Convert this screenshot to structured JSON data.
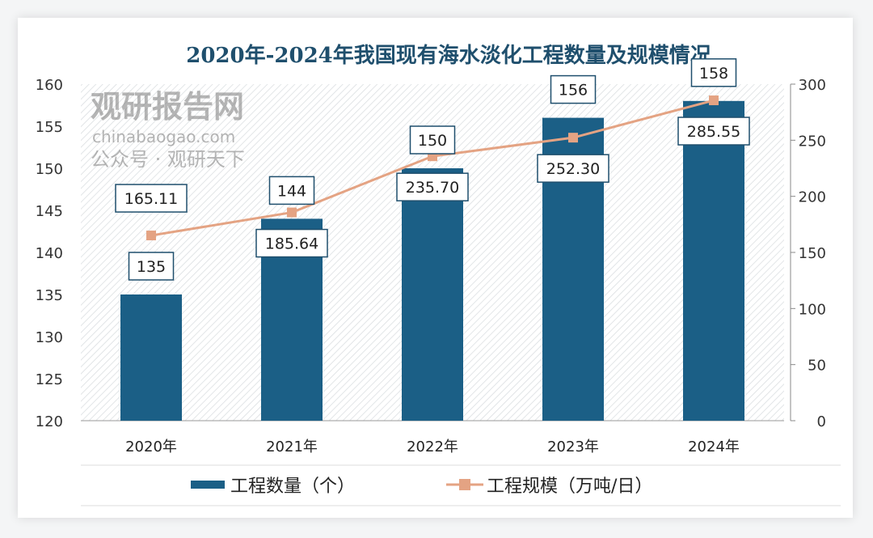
{
  "chart_data": {
    "type": "bar+line",
    "title": "2020年-2024年我国现有海水淡化工程数量及规模情况",
    "categories": [
      "2020年",
      "2021年",
      "2022年",
      "2023年",
      "2024年"
    ],
    "series": [
      {
        "name": "工程数量（个）",
        "type": "bar",
        "axis": "left",
        "values": [
          135,
          144,
          150,
          156,
          158
        ],
        "labels": [
          "135",
          "144",
          "150",
          "156",
          "158"
        ]
      },
      {
        "name": "工程规模（万吨/日）",
        "type": "line",
        "axis": "right",
        "values": [
          165.11,
          185.64,
          235.7,
          252.3,
          285.55
        ],
        "labels": [
          "165.11",
          "185.64",
          "235.70",
          "252.30",
          "285.55"
        ]
      }
    ],
    "left_axis": {
      "ylim": [
        120,
        160
      ],
      "ticks": [
        "120",
        "125",
        "130",
        "135",
        "140",
        "145",
        "150",
        "155",
        "160"
      ]
    },
    "right_axis": {
      "ylim": [
        0,
        300
      ],
      "ticks": [
        "0",
        "50",
        "100",
        "150",
        "200",
        "250",
        "300"
      ]
    },
    "legend_position": "bottom",
    "colors": {
      "bar": "#1b5f86",
      "line": "#e4a383",
      "title": "#1f4f6d"
    }
  },
  "watermark": {
    "brand": "观研报告网",
    "site": "chinabaogao.com",
    "account": "公众号 · 观研天下"
  }
}
